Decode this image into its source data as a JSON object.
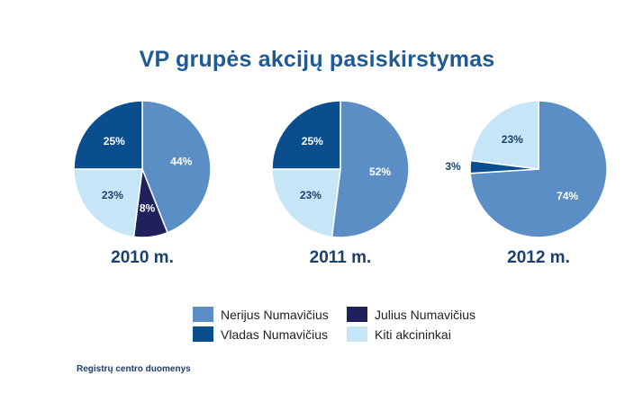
{
  "title": "VP grupės akcijų pasiskirstymas",
  "source": "Registrų centro duomenys",
  "colors": {
    "Nerijus Numavičius": "#5b8ec4",
    "Vladas Numavičius": "#0b4e8e",
    "Julius Numavičius": "#20205c",
    "Kiti akcininkai": "#c6e6f8"
  },
  "legend": [
    "Nerijus Numavičius",
    "Julius Numavičius",
    "Vladas Numavičius",
    "Kiti akcininkai"
  ],
  "chart_data": [
    {
      "type": "pie",
      "title": "2010 m.",
      "slices": [
        {
          "name": "Nerijus Numavičius",
          "value": 44,
          "label": "44%"
        },
        {
          "name": "Julius Numavičius",
          "value": 8,
          "label": "8%"
        },
        {
          "name": "Kiti akcininkai",
          "value": 23,
          "label": "23%"
        },
        {
          "name": "Vladas Numavičius",
          "value": 25,
          "label": "25%"
        }
      ]
    },
    {
      "type": "pie",
      "title": "2011 m.",
      "slices": [
        {
          "name": "Nerijus Numavičius",
          "value": 52,
          "label": "52%"
        },
        {
          "name": "Kiti akcininkai",
          "value": 23,
          "label": "23%"
        },
        {
          "name": "Vladas Numavičius",
          "value": 25,
          "label": "25%"
        }
      ]
    },
    {
      "type": "pie",
      "title": "2012 m.",
      "slices": [
        {
          "name": "Nerijus Numavičius",
          "value": 74,
          "label": "74%"
        },
        {
          "name": "Vladas Numavičius",
          "value": 3,
          "label": "3%"
        },
        {
          "name": "Kiti akcininkai",
          "value": 23,
          "label": "23%"
        }
      ]
    }
  ]
}
